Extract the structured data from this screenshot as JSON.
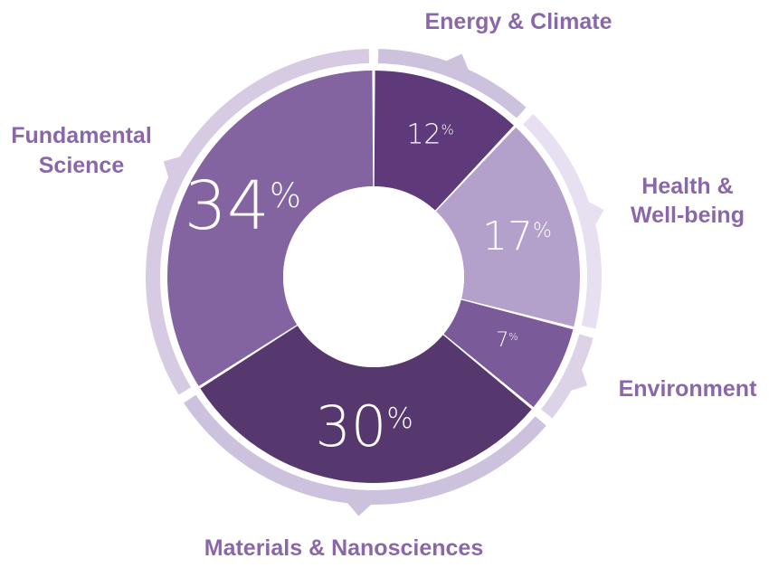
{
  "chart_data": {
    "type": "donut",
    "series": [
      {
        "label": "Energy & Climate",
        "value": 12,
        "percent_label": "12%",
        "color": "#5f3a7b",
        "ring_color": "#cdc2de"
      },
      {
        "label": "Health & Well-being",
        "value": 17,
        "percent_label": "17%",
        "color": "#b3a0cb",
        "ring_color": "#e7e0f0"
      },
      {
        "label": "Environment",
        "value": 7,
        "percent_label": "7%",
        "color": "#7b5a99",
        "ring_color": "#ddd3e7"
      },
      {
        "label": "Materials & Nanosciences",
        "value": 30,
        "percent_label": "30%",
        "color": "#56386e",
        "ring_color": "#cdc2de"
      },
      {
        "label": "Fundamental Science",
        "value": 34,
        "percent_label": "34%",
        "color": "#8463a1",
        "ring_color": "#d6cbe3"
      }
    ]
  },
  "colors": {
    "label_text": "#8a67a8",
    "background": "#ffffff"
  }
}
